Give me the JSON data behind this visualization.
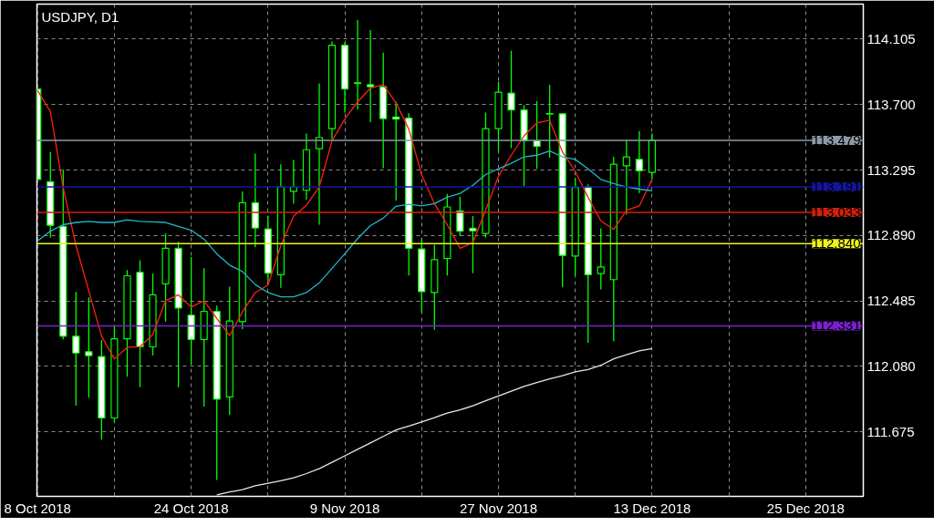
{
  "chart_data": {
    "type": "candlestick",
    "title": "USDJPY, D1",
    "categories": [
      "8 Oct 2018",
      null,
      null,
      null,
      null,
      null,
      null,
      null,
      null,
      null,
      null,
      null,
      "24 Oct 2018",
      null,
      null,
      null,
      null,
      null,
      null,
      null,
      null,
      null,
      null,
      null,
      "9 Nov 2018",
      null,
      null,
      null,
      null,
      null,
      null,
      null,
      null,
      null,
      null,
      null,
      "27 Nov 2018",
      null,
      null,
      null,
      null,
      null,
      null,
      null,
      null,
      null,
      null,
      null,
      "13 Dec 2018",
      null,
      null,
      null,
      null,
      null,
      null,
      null,
      null,
      null,
      null,
      null,
      "25 Dec 2018",
      null,
      null,
      null,
      null
    ],
    "ohlc": [
      [
        113.797,
        113.8,
        113.23,
        113.237
      ],
      [
        113.223,
        113.407,
        112.877,
        112.953
      ],
      [
        112.947,
        113.297,
        112.247,
        112.267
      ],
      [
        112.267,
        112.541,
        111.837,
        112.163
      ],
      [
        112.171,
        112.507,
        111.887,
        112.147
      ],
      [
        112.141,
        112.243,
        111.627,
        111.761
      ],
      [
        111.761,
        112.337,
        111.737,
        112.251
      ],
      [
        112.251,
        112.677,
        112.017,
        112.641
      ],
      [
        112.663,
        112.737,
        111.951,
        112.201
      ],
      [
        112.201,
        112.655,
        112.147,
        112.523
      ],
      [
        112.591,
        112.903,
        112.357,
        112.811
      ],
      [
        112.811,
        112.851,
        111.951,
        112.441
      ],
      [
        112.397,
        112.757,
        112.091,
        112.247
      ],
      [
        112.247,
        112.687,
        111.831,
        112.421
      ],
      [
        112.421,
        112.457,
        111.377,
        111.877
      ],
      [
        111.891,
        112.573,
        111.781,
        112.361
      ],
      [
        112.357,
        113.163,
        112.311,
        113.093
      ],
      [
        113.093,
        113.397,
        112.817,
        112.937
      ],
      [
        112.931,
        113.011,
        112.607,
        112.657
      ],
      [
        112.647,
        113.331,
        112.567,
        113.191
      ],
      [
        113.163,
        113.357,
        113.087,
        113.191
      ],
      [
        113.17,
        113.521,
        113.111,
        113.421
      ],
      [
        113.427,
        113.831,
        112.957,
        113.497
      ],
      [
        113.551,
        114.091,
        113.487,
        114.067
      ],
      [
        114.067,
        114.087,
        113.651,
        113.797
      ],
      [
        113.835,
        114.223,
        113.671,
        113.831
      ],
      [
        113.823,
        114.161,
        113.591,
        113.811
      ],
      [
        113.811,
        114.021,
        113.307,
        113.613
      ],
      [
        113.623,
        113.717,
        113.107,
        113.611
      ],
      [
        113.617,
        113.647,
        112.643,
        112.811
      ],
      [
        112.807,
        112.871,
        112.417,
        112.543
      ],
      [
        112.537,
        112.833,
        112.307,
        112.741
      ],
      [
        112.747,
        113.147,
        112.643,
        113.067
      ],
      [
        113.043,
        113.131,
        112.887,
        112.917
      ],
      [
        112.935,
        113.011,
        112.657,
        112.919
      ],
      [
        112.903,
        113.651,
        112.877,
        113.551
      ],
      [
        113.551,
        113.841,
        113.411,
        113.777
      ],
      [
        113.771,
        114.033,
        113.431,
        113.667
      ],
      [
        113.667,
        113.697,
        113.197,
        113.477
      ],
      [
        113.477,
        113.721,
        113.303,
        113.441
      ],
      [
        113.641,
        113.823,
        113.373,
        113.645
      ],
      [
        113.643,
        113.647,
        112.571,
        112.767
      ],
      [
        112.763,
        113.247,
        112.643,
        113.187
      ],
      [
        113.191,
        113.207,
        112.227,
        112.647
      ],
      [
        112.655,
        112.935,
        112.557,
        112.695
      ],
      [
        112.617,
        113.377,
        112.237,
        113.331
      ],
      [
        113.321,
        113.481,
        113.021,
        113.377
      ],
      [
        113.361,
        113.537,
        113.153,
        113.291
      ],
      [
        113.281,
        113.523,
        113.237,
        113.479
      ],
      null,
      null,
      null,
      null,
      null,
      null,
      null,
      null,
      null,
      null,
      null,
      null,
      null,
      null,
      null,
      null
    ],
    "series": [
      {
        "type": "line",
        "color": "#ff2010",
        "values": [
          113.787,
          113.657,
          113.187,
          112.827,
          112.547,
          112.267,
          112.127,
          112.197,
          112.203,
          112.277,
          112.487,
          112.523,
          112.447,
          112.487,
          112.377,
          112.271,
          112.417,
          112.537,
          112.583,
          112.827,
          113.011,
          113.077,
          113.191,
          113.477,
          113.611,
          113.717,
          113.803,
          113.823,
          113.711,
          113.547,
          113.267,
          113.087,
          112.957,
          112.811,
          112.847,
          113.047,
          113.257,
          113.387,
          113.507,
          113.587,
          113.603,
          113.407,
          113.287,
          113.127,
          112.981,
          112.927,
          113.047,
          113.073,
          113.237,
          null,
          null,
          null,
          null,
          null,
          null,
          null,
          null,
          null,
          null,
          null,
          null,
          null,
          null,
          null,
          null
        ]
      },
      {
        "type": "line",
        "color": "#20b8c8",
        "values": [
          112.857,
          112.917,
          112.957,
          112.971,
          112.977,
          112.971,
          112.971,
          112.987,
          112.977,
          112.975,
          112.971,
          112.947,
          112.923,
          112.867,
          112.777,
          112.707,
          112.667,
          112.587,
          112.537,
          112.511,
          112.511,
          112.537,
          112.597,
          112.687,
          112.777,
          112.871,
          112.951,
          112.997,
          113.071,
          113.083,
          113.073,
          113.087,
          113.127,
          113.151,
          113.201,
          113.267,
          113.303,
          113.337,
          113.377,
          113.387,
          113.413,
          113.377,
          113.361,
          113.303,
          113.237,
          113.211,
          113.191,
          113.177,
          113.167,
          null,
          null,
          null,
          null,
          null,
          null,
          null,
          null,
          null,
          null,
          null,
          null,
          null,
          null,
          null,
          null
        ]
      },
      {
        "type": "line",
        "color": "#e8e8e8",
        "values": [
          null,
          null,
          null,
          null,
          null,
          null,
          null,
          null,
          null,
          null,
          null,
          null,
          null,
          null,
          111.285,
          111.303,
          111.317,
          111.341,
          111.357,
          111.373,
          111.391,
          111.417,
          111.447,
          111.487,
          111.527,
          111.567,
          111.607,
          111.647,
          111.687,
          111.711,
          111.737,
          111.763,
          111.791,
          111.811,
          111.837,
          111.867,
          111.897,
          111.927,
          111.957,
          111.981,
          112.003,
          112.023,
          112.047,
          112.061,
          112.087,
          112.127,
          112.153,
          112.177,
          112.191,
          null,
          null,
          null,
          null,
          null,
          null,
          null,
          null,
          null,
          null,
          null,
          null,
          null,
          null,
          null,
          null
        ]
      }
    ],
    "ref_lines": [
      {
        "axis": "y",
        "value": 113.479,
        "label": "113.479",
        "color": "#8c9aa8"
      },
      {
        "axis": "y",
        "value": 113.191,
        "label": "113.191",
        "color": "#1414a0"
      },
      {
        "axis": "y",
        "value": 113.033,
        "label": "113.033",
        "color": "#d0200c"
      },
      {
        "axis": "y",
        "value": 112.84,
        "label": "112.840",
        "color": "#f0f020"
      },
      {
        "axis": "y",
        "value": 112.331,
        "label": "112.331",
        "color": "#7a20d0"
      }
    ],
    "ylim": [
      111.276,
      114.322
    ],
    "yticks": [
      {
        "value": 111.675,
        "label": "111.675"
      },
      {
        "value": 112.08,
        "label": "112.080"
      },
      {
        "value": 112.485,
        "label": "112.485"
      },
      {
        "value": 112.89,
        "label": "112.890"
      },
      {
        "value": 113.295,
        "label": "113.295"
      },
      {
        "value": 113.7,
        "label": "113.700"
      },
      {
        "value": 114.105,
        "label": "114.105"
      }
    ],
    "grid": true
  }
}
